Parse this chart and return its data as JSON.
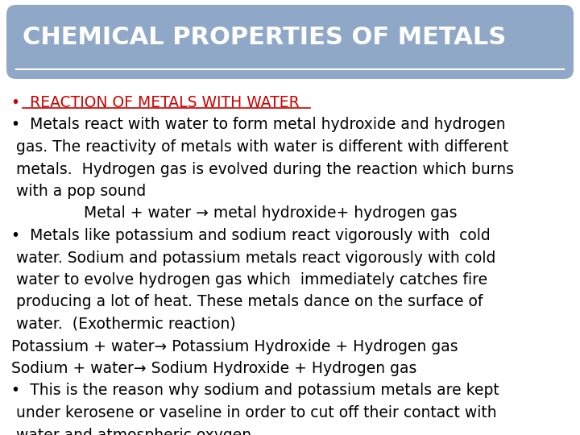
{
  "title": "CHEMICAL PROPERTIES OF METALS",
  "title_bg_color": "#8fa8c8",
  "title_text_color": "#ffffff",
  "bg_color": "#ffffff",
  "title_underline_color": "#ffffff",
  "first_bullet_color": "#cc0000",
  "body_color": "#000000",
  "body_lines": [
    {
      "text": "•  REACTION OF METALS WITH WATER",
      "color": "#cc0000",
      "underline": true,
      "size": 13.5
    },
    {
      "text": "•  Metals react with water to form metal hydroxide and hydrogen",
      "color": "#000000",
      "underline": false,
      "size": 13.5
    },
    {
      "text": " gas. The reactivity of metals with water is different with different",
      "color": "#000000",
      "underline": false,
      "size": 13.5
    },
    {
      "text": " metals.  Hydrogen gas is evolved during the reaction which burns",
      "color": "#000000",
      "underline": false,
      "size": 13.5
    },
    {
      "text": " with a pop sound",
      "color": "#000000",
      "underline": false,
      "size": 13.5
    },
    {
      "text": "               Metal + water → metal hydroxide+ hydrogen gas",
      "color": "#000000",
      "underline": false,
      "size": 13.5
    },
    {
      "text": "•  Metals like potassium and sodium react vigorously with  cold",
      "color": "#000000",
      "underline": false,
      "size": 13.5
    },
    {
      "text": " water. Sodium and potassium metals react vigorously with cold",
      "color": "#000000",
      "underline": false,
      "size": 13.5
    },
    {
      "text": " water to evolve hydrogen gas which  immediately catches fire",
      "color": "#000000",
      "underline": false,
      "size": 13.5
    },
    {
      "text": " producing a lot of heat. These metals dance on the surface of",
      "color": "#000000",
      "underline": false,
      "size": 13.5
    },
    {
      "text": " water.  (Exothermic reaction)",
      "color": "#000000",
      "underline": false,
      "size": 13.5
    },
    {
      "text": "Potassium + water→ Potassium Hydroxide + Hydrogen gas",
      "color": "#000000",
      "underline": false,
      "size": 13.5
    },
    {
      "text": "Sodium + water→ Sodium Hydroxide + Hydrogen gas",
      "color": "#000000",
      "underline": false,
      "size": 13.5
    },
    {
      "text": "•  This is the reason why sodium and potassium metals are kept",
      "color": "#000000",
      "underline": false,
      "size": 13.5
    },
    {
      "text": " under kerosene or vaseline in order to cut off their contact with",
      "color": "#000000",
      "underline": false,
      "size": 13.5
    },
    {
      "text": " water and atmospheric oxygen.",
      "color": "#000000",
      "underline": false,
      "size": 13.5
    }
  ],
  "fig_width": 7.2,
  "fig_height": 5.4,
  "dpi": 100
}
